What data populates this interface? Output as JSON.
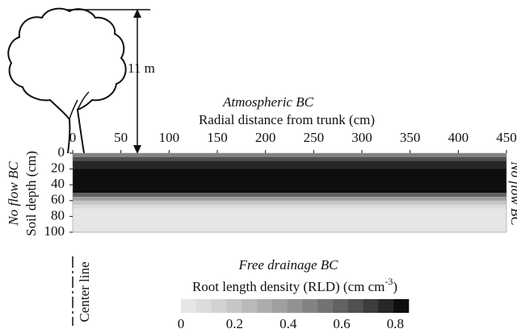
{
  "chart_data": {
    "type": "heatmap",
    "tree_height": "11 m",
    "top_label": "Atmospheric BC",
    "x_label": "Radial distance from trunk (cm)",
    "y_label": "Soil depth (cm)",
    "left_label": "No flow BC",
    "right_label": "No flow BC",
    "bottom_label": "Free drainage BC",
    "center_label": "Center line",
    "xlim": [
      0,
      450
    ],
    "xticks": [
      0,
      50,
      100,
      150,
      200,
      250,
      300,
      350,
      400,
      450
    ],
    "ylim": [
      0,
      100
    ],
    "yticks": [
      0,
      20,
      40,
      60,
      80,
      100
    ],
    "depth_edges": [
      0,
      5,
      10,
      20,
      50,
      55,
      60,
      65,
      70,
      100
    ],
    "values": [
      0.5,
      0.65,
      0.75,
      0.84,
      0.6,
      0.35,
      0.2,
      0.1,
      0.05
    ],
    "colorbar": {
      "title": "Root length density (RLD) (cm cm",
      "title_sup": "-3",
      "title_end": ")",
      "lim": [
        0,
        0.85
      ],
      "ticks": [
        0,
        0.2,
        0.4,
        0.6,
        0.8
      ],
      "colors": [
        "#e6e6e6",
        "#dcdcdc",
        "#d2d2d2",
        "#c6c6c6",
        "#bababa",
        "#adadad",
        "#a0a0a0",
        "#929292",
        "#838383",
        "#737373",
        "#626262",
        "#505050",
        "#3c3c3c",
        "#272727",
        "#0e0e0e"
      ]
    }
  }
}
